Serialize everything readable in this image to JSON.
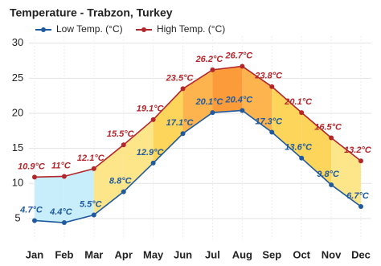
{
  "chart_data": {
    "type": "line",
    "title": "Temperature - Trabzon, Turkey",
    "categories": [
      "Jan",
      "Feb",
      "Mar",
      "Apr",
      "May",
      "Jun",
      "Jul",
      "Aug",
      "Sep",
      "Oct",
      "Nov",
      "Dec"
    ],
    "series": [
      {
        "name": "Low Temp. (°C)",
        "color": "#1f5a9e",
        "values": [
          4.7,
          4.4,
          5.5,
          8.8,
          12.9,
          17.1,
          20.1,
          20.4,
          17.3,
          13.6,
          9.8,
          6.7
        ],
        "value_labels": [
          "4.7°C",
          "4.4°C",
          "5.5°C",
          "8.8°C",
          "12.9°C",
          "17.1°C",
          "20.1°C",
          "20.4°C",
          "17.3°C",
          "13.6°C",
          "9.8°C",
          "6.7°C"
        ]
      },
      {
        "name": "High Temp. (°C)",
        "color": "#b3262b",
        "values": [
          10.9,
          11,
          12.1,
          15.5,
          19.1,
          23.5,
          26.2,
          26.7,
          23.8,
          20.1,
          16.5,
          13.2
        ],
        "value_labels": [
          "10.9°C",
          "11°C",
          "12.1°C",
          "15.5°C",
          "19.1°C",
          "23.5°C",
          "26.2°C",
          "26.7°C",
          "23.8°C",
          "20.1°C",
          "16.5°C",
          "13.2°C"
        ]
      }
    ],
    "ylim": [
      2,
      31
    ],
    "yticks": [
      5,
      10,
      15,
      20,
      25,
      30
    ],
    "grid": true
  }
}
